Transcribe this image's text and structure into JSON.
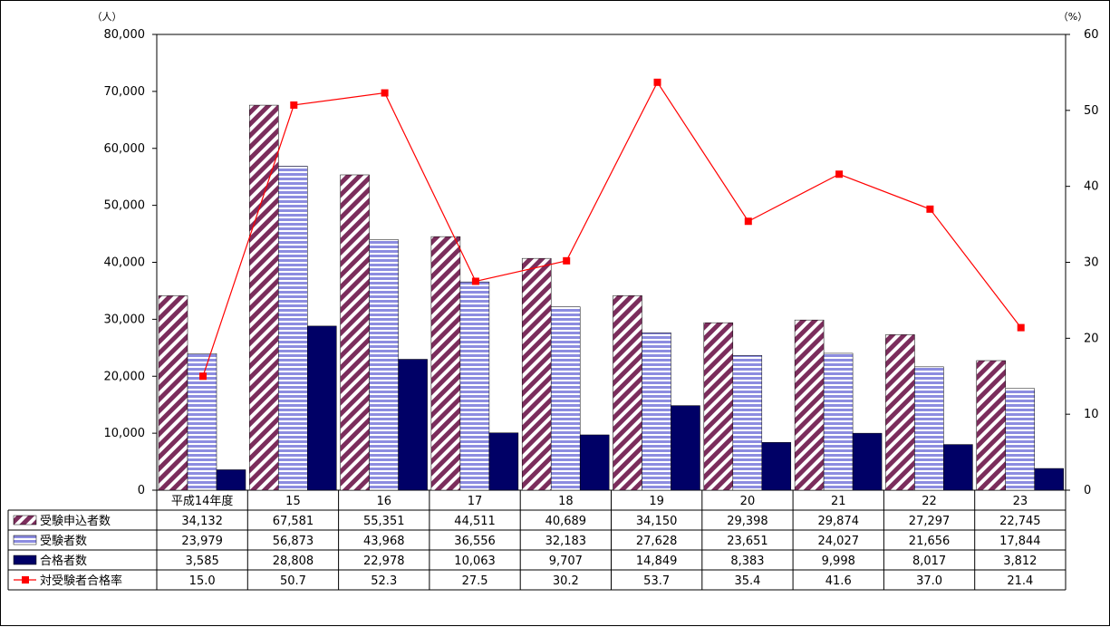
{
  "chart_data": {
    "type": "bar",
    "categories": [
      "平成14年度",
      "15",
      "16",
      "17",
      "18",
      "19",
      "20",
      "21",
      "22",
      "23"
    ],
    "series": [
      {
        "name": "受験申込者数",
        "kind": "bar",
        "axis": "left",
        "pattern": "diagonal-stripes",
        "color": "#7b2d5c",
        "values": [
          34132,
          67581,
          55351,
          44511,
          40689,
          34150,
          29398,
          29874,
          27297,
          22745
        ],
        "labels": [
          "34,132",
          "67,581",
          "55,351",
          "44,511",
          "40,689",
          "34,150",
          "29,398",
          "29,874",
          "27,297",
          "22,745"
        ]
      },
      {
        "name": "受験者数",
        "kind": "bar",
        "axis": "left",
        "pattern": "horizontal-stripes",
        "color": "#8c8ce0",
        "values": [
          23979,
          56873,
          43968,
          36556,
          32183,
          27628,
          23651,
          24027,
          21656,
          17844
        ],
        "labels": [
          "23,979",
          "56,873",
          "43,968",
          "36,556",
          "32,183",
          "27,628",
          "23,651",
          "24,027",
          "21,656",
          "17,844"
        ]
      },
      {
        "name": "合格者数",
        "kind": "bar",
        "axis": "left",
        "pattern": "solid",
        "color": "#000066",
        "values": [
          3585,
          28808,
          22978,
          10063,
          9707,
          14849,
          8383,
          9998,
          8017,
          3812
        ],
        "labels": [
          "3,585",
          "28,808",
          "22,978",
          "10,063",
          "9,707",
          "14,849",
          "8,383",
          "9,998",
          "8,017",
          "3,812"
        ]
      },
      {
        "name": "対受験者合格率",
        "kind": "line",
        "axis": "right",
        "color": "#ff0000",
        "values": [
          15.0,
          50.7,
          52.3,
          27.5,
          30.2,
          53.7,
          35.4,
          41.6,
          37.0,
          21.4
        ],
        "labels": [
          "15.0",
          "50.7",
          "52.3",
          "27.5",
          "30.2",
          "53.7",
          "35.4",
          "41.6",
          "37.0",
          "21.4"
        ]
      }
    ],
    "left_axis": {
      "unit": "（人）",
      "ylim": [
        0,
        80000
      ],
      "ticks": [
        "0",
        "10,000",
        "20,000",
        "30,000",
        "40,000",
        "50,000",
        "60,000",
        "70,000",
        "80,000"
      ]
    },
    "right_axis": {
      "unit": "（%）",
      "ylim": [
        0,
        60
      ],
      "ticks": [
        "0",
        "10",
        "20",
        "30",
        "40",
        "50",
        "60"
      ]
    },
    "grid": false,
    "legend": "data-table-below"
  }
}
